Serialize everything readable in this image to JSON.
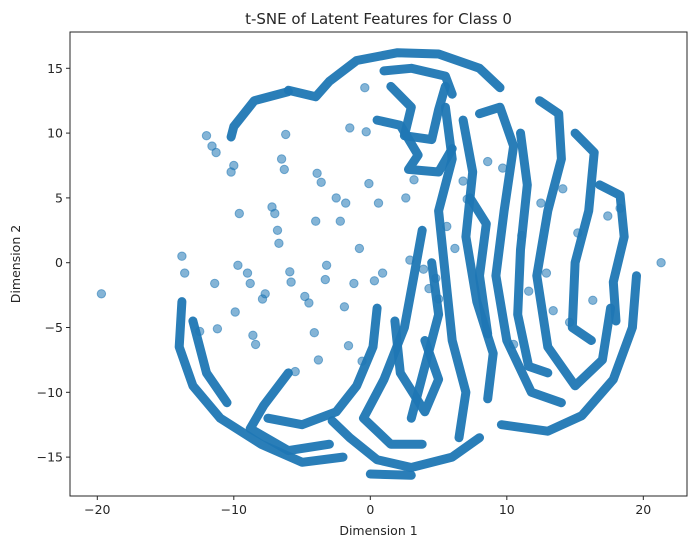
{
  "chart_data": {
    "type": "scatter",
    "title": "t-SNE of Latent Features for Class 0",
    "xlabel": "Dimension 1",
    "ylabel": "Dimension 2",
    "xlim": [
      -22,
      23.2
    ],
    "ylim": [
      -18,
      17.8
    ],
    "xticks": [
      -20,
      -10,
      0,
      10,
      20
    ],
    "yticks": [
      -15,
      -10,
      -5,
      0,
      5,
      10,
      15
    ],
    "grid": false,
    "legend": "none",
    "marker_color": "#1f77b4",
    "marker_alpha": 0.55,
    "series": [
      {
        "values_description_free": true,
        "points": [
          [
            -19.7,
            -2.4
          ],
          [
            -13.8,
            0.5
          ],
          [
            -13.6,
            -0.8
          ],
          [
            -12.5,
            -5.3
          ],
          [
            -12.0,
            9.8
          ],
          [
            -11.6,
            9.0
          ],
          [
            -11.3,
            8.5
          ],
          [
            -11.4,
            -1.6
          ],
          [
            -11.2,
            -5.1
          ],
          [
            -10.2,
            7.0
          ],
          [
            -10.0,
            7.5
          ],
          [
            -9.9,
            -3.8
          ],
          [
            -9.7,
            -0.2
          ],
          [
            -9.6,
            3.8
          ],
          [
            -9.0,
            -0.8
          ],
          [
            -8.8,
            -1.6
          ],
          [
            -8.6,
            -5.6
          ],
          [
            -8.4,
            -6.3
          ],
          [
            -7.9,
            -2.8
          ],
          [
            -7.7,
            -2.4
          ],
          [
            -7.2,
            4.3
          ],
          [
            -7.0,
            3.8
          ],
          [
            -6.8,
            2.5
          ],
          [
            -6.7,
            1.5
          ],
          [
            -6.5,
            8.0
          ],
          [
            -6.3,
            7.2
          ],
          [
            -6.2,
            9.9
          ],
          [
            -5.9,
            -0.7
          ],
          [
            -5.8,
            -1.5
          ],
          [
            -5.5,
            -8.4
          ],
          [
            -4.8,
            -2.6
          ],
          [
            -4.5,
            -3.1
          ],
          [
            -4.1,
            -5.4
          ],
          [
            -4.0,
            3.2
          ],
          [
            -3.9,
            6.9
          ],
          [
            -3.8,
            -7.5
          ],
          [
            -3.6,
            6.2
          ],
          [
            -3.3,
            -1.3
          ],
          [
            -3.2,
            -0.2
          ],
          [
            -2.5,
            5.0
          ],
          [
            -2.2,
            3.2
          ],
          [
            -1.9,
            -3.4
          ],
          [
            -1.8,
            4.6
          ],
          [
            -1.6,
            -6.4
          ],
          [
            -1.5,
            10.4
          ],
          [
            -1.2,
            -1.6
          ],
          [
            -0.8,
            1.1
          ],
          [
            -0.6,
            -7.6
          ],
          [
            -0.4,
            13.5
          ],
          [
            -0.3,
            10.1
          ],
          [
            -0.1,
            6.1
          ],
          [
            0.3,
            -1.4
          ],
          [
            0.6,
            4.6
          ],
          [
            0.9,
            -0.8
          ],
          [
            2.6,
            5.0
          ],
          [
            2.9,
            0.2
          ],
          [
            3.2,
            6.4
          ],
          [
            3.9,
            -0.5
          ],
          [
            4.3,
            -2.0
          ],
          [
            4.8,
            -1.2
          ],
          [
            5.0,
            -2.8
          ],
          [
            5.6,
            2.8
          ],
          [
            6.2,
            1.1
          ],
          [
            6.8,
            6.3
          ],
          [
            7.1,
            4.9
          ],
          [
            8.6,
            7.8
          ],
          [
            9.7,
            7.3
          ],
          [
            10.5,
            -6.3
          ],
          [
            11.1,
            2.1
          ],
          [
            11.6,
            -2.2
          ],
          [
            12.5,
            4.6
          ],
          [
            12.9,
            -0.8
          ],
          [
            13.4,
            -3.7
          ],
          [
            14.1,
            5.7
          ],
          [
            14.6,
            -4.6
          ],
          [
            15.2,
            2.3
          ],
          [
            16.3,
            -2.9
          ],
          [
            17.4,
            3.6
          ],
          [
            18.3,
            4.2
          ],
          [
            21.3,
            0.0
          ]
        ]
      }
    ]
  }
}
